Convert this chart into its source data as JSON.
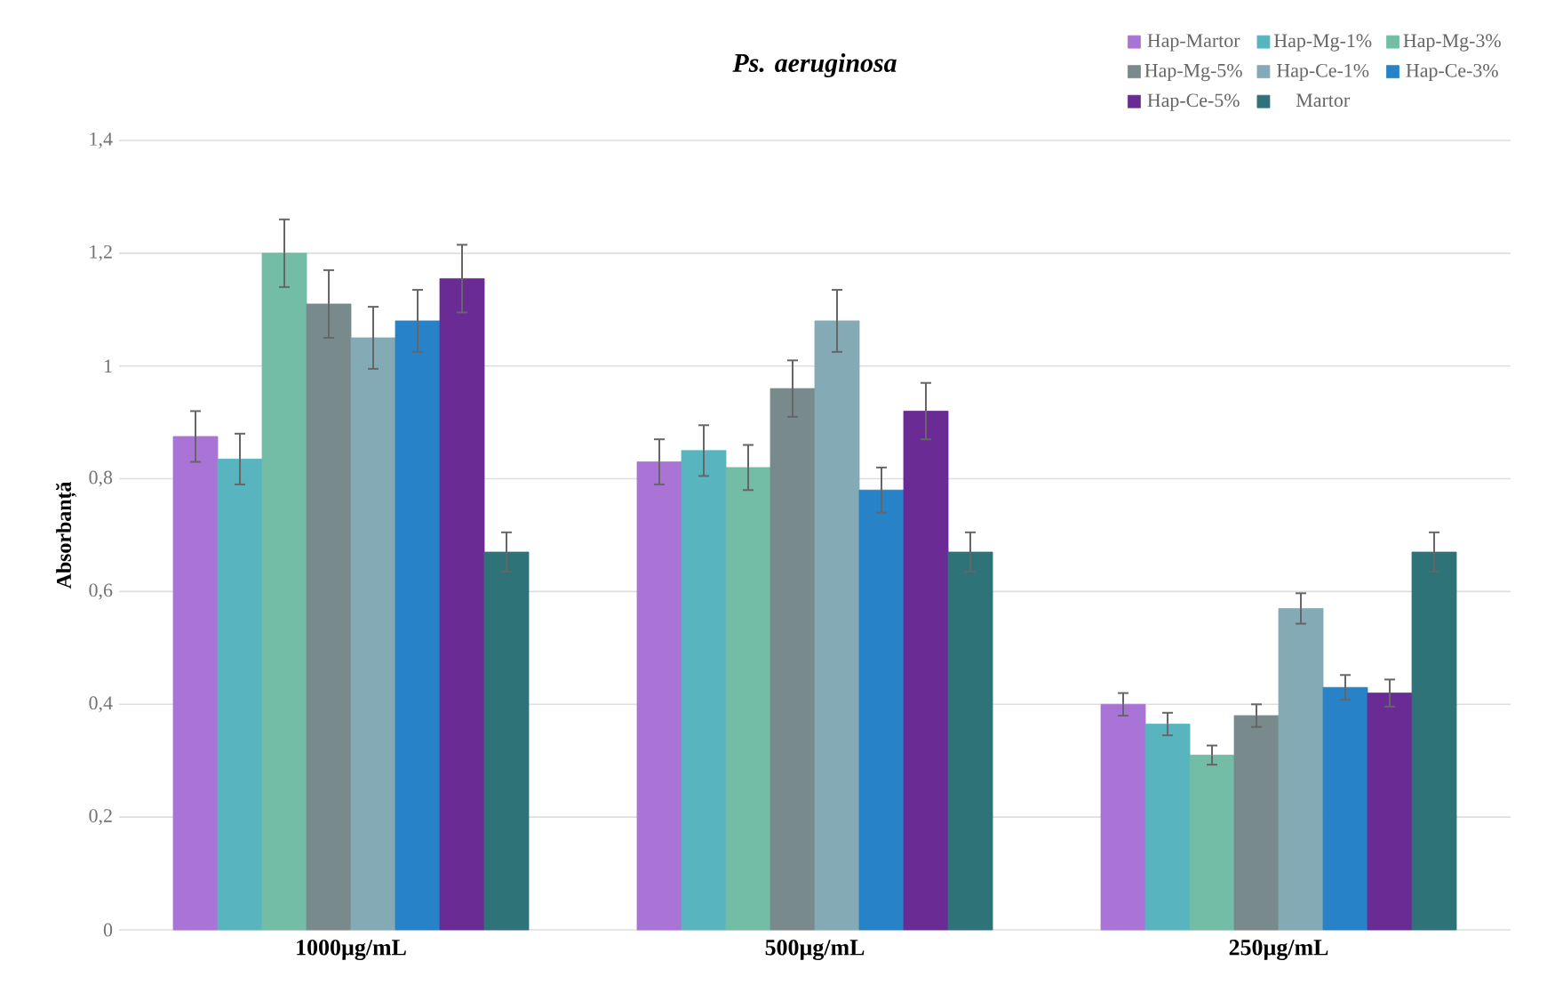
{
  "chart_data": {
    "type": "bar",
    "title": "Ps. aeruginosa",
    "ylabel": "Absorbanță",
    "categories": [
      "1000µg/mL",
      "500µg/mL",
      "250µg/mL"
    ],
    "series": [
      {
        "name": "Hap-Martor",
        "color": "#a974d6",
        "values": [
          0.875,
          0.83,
          0.4
        ],
        "errors": [
          0.045,
          0.04,
          0.02
        ]
      },
      {
        "name": "Hap-Mg-1%",
        "color": "#58b5c0",
        "values": [
          0.835,
          0.85,
          0.365
        ],
        "errors": [
          0.045,
          0.045,
          0.02
        ]
      },
      {
        "name": "Hap-Mg-3%",
        "color": "#73bca5",
        "values": [
          1.2,
          0.82,
          0.31
        ],
        "errors": [
          0.06,
          0.04,
          0.017
        ]
      },
      {
        "name": "Hap-Mg-5%",
        "color": "#798a8c",
        "values": [
          1.11,
          0.96,
          0.38
        ],
        "errors": [
          0.06,
          0.05,
          0.02
        ]
      },
      {
        "name": "Hap-Ce-1%",
        "color": "#84aab5",
        "values": [
          1.05,
          1.08,
          0.57
        ],
        "errors": [
          0.055,
          0.055,
          0.027
        ]
      },
      {
        "name": "Hap-Ce-3%",
        "color": "#2782c8",
        "values": [
          1.08,
          0.78,
          0.43
        ],
        "errors": [
          0.055,
          0.04,
          0.022
        ]
      },
      {
        "name": "Hap-Ce-5%",
        "color": "#6a2b94",
        "values": [
          1.155,
          0.92,
          0.42
        ],
        "errors": [
          0.06,
          0.05,
          0.024
        ]
      },
      {
        "name": "Martor",
        "color": "#2e7378",
        "values": [
          0.67,
          0.67,
          0.67
        ],
        "errors": [
          0.035,
          0.035,
          0.035
        ]
      }
    ],
    "ylim": [
      0,
      1.4
    ],
    "yticks": [
      0,
      {
        "value": 0.2,
        "label": "0,2"
      },
      {
        "value": 0.4,
        "label": "0,4"
      },
      {
        "value": 0.6,
        "label": "0,6"
      },
      {
        "value": 0.8,
        "label": "0,8"
      },
      1,
      {
        "value": 1.2,
        "label": "1,2"
      },
      {
        "value": 1.4,
        "label": "1,4"
      }
    ],
    "grid": "y",
    "legend": "top right"
  }
}
